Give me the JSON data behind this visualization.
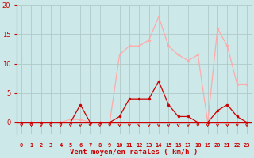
{
  "x": [
    0,
    1,
    2,
    3,
    4,
    5,
    6,
    7,
    8,
    9,
    10,
    11,
    12,
    13,
    14,
    15,
    16,
    17,
    18,
    19,
    20,
    21,
    22,
    23
  ],
  "wind_avg": [
    0,
    0,
    0,
    0,
    0,
    0,
    3,
    0,
    0,
    0,
    1,
    4,
    4,
    4,
    7,
    3,
    1,
    1,
    0,
    0,
    2,
    3,
    1,
    0
  ],
  "wind_gust": [
    0,
    0,
    0,
    0,
    0,
    0.5,
    0.5,
    0,
    0,
    0,
    11.5,
    13,
    13,
    14,
    18,
    13,
    11.5,
    10.5,
    11.5,
    0,
    16,
    13,
    6.5,
    6.5
  ],
  "avg_color": "#cc0000",
  "gust_color": "#ffaaaa",
  "background_color": "#cce8e8",
  "grid_color": "#b0c8c8",
  "xlabel": "Vent moyen/en rafales ( km/h )",
  "ylim": [
    0,
    20
  ],
  "xlim": [
    -0.5,
    23.5
  ],
  "yticks": [
    0,
    5,
    10,
    15,
    20
  ],
  "xticks": [
    0,
    1,
    2,
    3,
    4,
    5,
    6,
    7,
    8,
    9,
    10,
    11,
    12,
    13,
    14,
    15,
    16,
    17,
    18,
    19,
    20,
    21,
    22,
    23
  ]
}
